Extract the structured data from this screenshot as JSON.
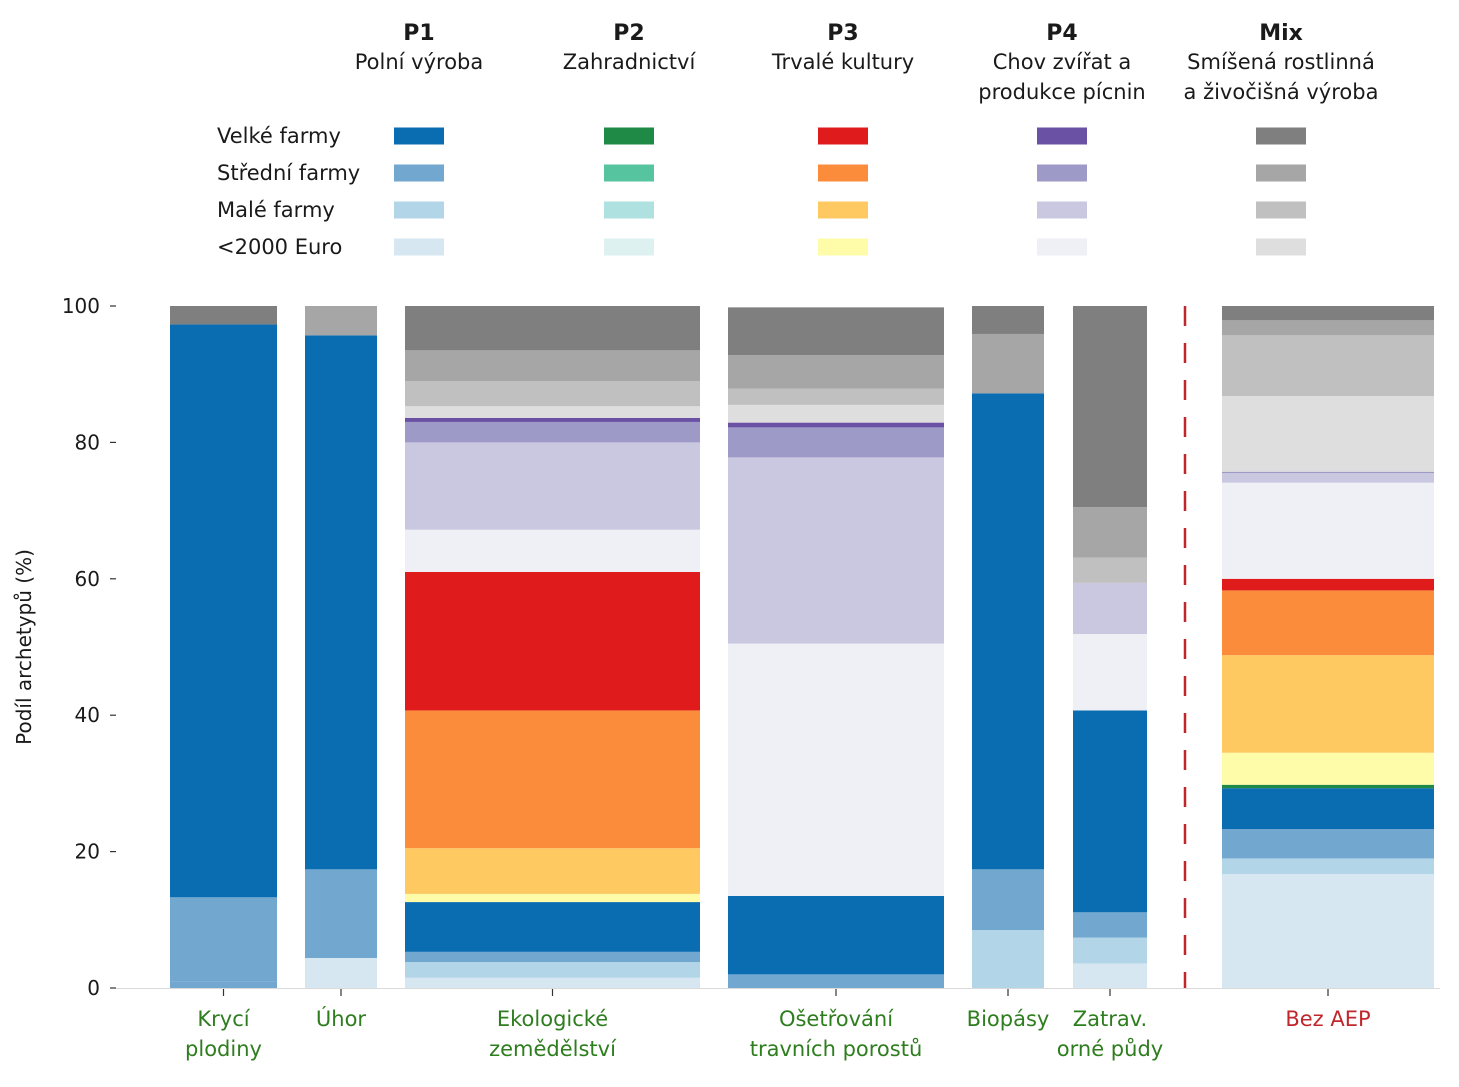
{
  "chart_data": {
    "type": "bar",
    "ylabel": "Podíl archetypů (%)",
    "ylim": [
      0,
      100
    ],
    "yticks": [
      "0",
      "20",
      "40",
      "60",
      "80",
      "100"
    ],
    "legend": {
      "groups": [
        {
          "code": "P1",
          "name": [
            "Polní výroba"
          ],
          "colors": [
            "#0b6db1",
            "#72a7cf",
            "#b3d5e8",
            "#d6e7f2"
          ]
        },
        {
          "code": "P2",
          "name": [
            "Zahradnictví"
          ],
          "colors": [
            "#1e8a45",
            "#56c49e",
            "#aee1df",
            "#ddf2f0"
          ]
        },
        {
          "code": "P3",
          "name": [
            "Trvalé kultury"
          ],
          "colors": [
            "#e01b1b",
            "#fb8c3c",
            "#fdc960",
            "#fefca8"
          ]
        },
        {
          "code": "P4",
          "name": [
            "Chov zvířat a",
            "produkce pícnin"
          ],
          "colors": [
            "#6a51a3",
            "#9e9ac8",
            "#cac7e1",
            "#efeff6"
          ]
        },
        {
          "code": "Mix",
          "name": [
            "Smíšená rostlinná",
            "a živočišná výroba"
          ],
          "colors": [
            "#7f7f7f",
            "#a6a6a6",
            "#c0c0c0",
            "#dedede"
          ]
        }
      ],
      "rows": [
        "Velké farmy",
        "Střední farmy",
        "Malé farmy",
        "<2000 Euro"
      ]
    },
    "bars": [
      {
        "label": [
          "Krycí",
          "plodiny"
        ],
        "label_color": "#2e7d1e",
        "segments": [
          {
            "group": "P1",
            "size": 0,
            "value": 0
          },
          {
            "group": "P1",
            "size": 1,
            "value": 1
          },
          {
            "group": "P1",
            "size": 1,
            "value": 12.3
          },
          {
            "group": "P1",
            "size": 0,
            "value": 84
          },
          {
            "group": "Mix",
            "size": 0,
            "value": 2.7
          }
        ]
      },
      {
        "label": [
          "Úhor"
        ],
        "label_color": "#2e7d1e",
        "segments": [
          {
            "group": "P1",
            "size": 3,
            "value": 4.4
          },
          {
            "group": "P1",
            "size": 1,
            "value": 13
          },
          {
            "group": "P1",
            "size": 0,
            "value": 78.3
          },
          {
            "group": "Mix",
            "size": 1,
            "value": 4.3
          }
        ]
      },
      {
        "label": [
          "Ekologické",
          "zemědělství"
        ],
        "label_color": "#2e7d1e",
        "segments": [
          {
            "group": "P1",
            "size": 3,
            "value": 1.5
          },
          {
            "group": "P1",
            "size": 2,
            "value": 2.3
          },
          {
            "group": "P1",
            "size": 1,
            "value": 1.5
          },
          {
            "group": "P1",
            "size": 0,
            "value": 7.3
          },
          {
            "group": "P3",
            "size": 3,
            "value": 1.2
          },
          {
            "group": "P3",
            "size": 2,
            "value": 6.7
          },
          {
            "group": "P3",
            "size": 1,
            "value": 20.2
          },
          {
            "group": "P3",
            "size": 0,
            "value": 20.3
          },
          {
            "group": "P4",
            "size": 3,
            "value": 6.2
          },
          {
            "group": "P4",
            "size": 2,
            "value": 12.8
          },
          {
            "group": "P4",
            "size": 1,
            "value": 3
          },
          {
            "group": "P4",
            "size": 0,
            "value": 0.6
          },
          {
            "group": "Mix",
            "size": 3,
            "value": 1.7
          },
          {
            "group": "Mix",
            "size": 2,
            "value": 3.7
          },
          {
            "group": "Mix",
            "size": 1,
            "value": 4.5
          },
          {
            "group": "Mix",
            "size": 0,
            "value": 6.5
          }
        ]
      },
      {
        "label": [
          "Ošetřování",
          "travních porostů"
        ],
        "label_color": "#2e7d1e",
        "segments": [
          {
            "group": "P1",
            "size": 1,
            "value": 2
          },
          {
            "group": "P1",
            "size": 0,
            "value": 11.5
          },
          {
            "group": "P4",
            "size": 3,
            "value": 37
          },
          {
            "group": "P4",
            "size": 2,
            "value": 27.3
          },
          {
            "group": "P4",
            "size": 1,
            "value": 4.4
          },
          {
            "group": "P4",
            "size": 0,
            "value": 0.7
          },
          {
            "group": "Mix",
            "size": 3,
            "value": 2.6
          },
          {
            "group": "Mix",
            "size": 2,
            "value": 2.4
          },
          {
            "group": "Mix",
            "size": 1,
            "value": 4.9
          },
          {
            "group": "Mix",
            "size": 0,
            "value": 7
          }
        ]
      },
      {
        "label": [
          "Biopásy"
        ],
        "label_color": "#2e7d1e",
        "segments": [
          {
            "group": "P1",
            "size": 2,
            "value": 8.5
          },
          {
            "group": "P1",
            "size": 1,
            "value": 8.9
          },
          {
            "group": "P1",
            "size": 0,
            "value": 69.8
          },
          {
            "group": "Mix",
            "size": 1,
            "value": 8.7
          },
          {
            "group": "Mix",
            "size": 0,
            "value": 4.1
          }
        ]
      },
      {
        "label": [
          "Zatrav.",
          "orné půdy"
        ],
        "label_color": "#2e7d1e",
        "segments": [
          {
            "group": "P1",
            "size": 3,
            "value": 3.6
          },
          {
            "group": "P1",
            "size": 2,
            "value": 3.8
          },
          {
            "group": "P1",
            "size": 1,
            "value": 3.7
          },
          {
            "group": "P1",
            "size": 0,
            "value": 29.6
          },
          {
            "group": "P4",
            "size": 3,
            "value": 11.2
          },
          {
            "group": "P4",
            "size": 2,
            "value": 7.5
          },
          {
            "group": "Mix",
            "size": 2,
            "value": 3.7
          },
          {
            "group": "Mix",
            "size": 1,
            "value": 7.4
          },
          {
            "group": "Mix",
            "size": 0,
            "value": 29.5
          }
        ]
      },
      {
        "label": [
          "Bez AEP"
        ],
        "label_color": "#c0272d",
        "segments": [
          {
            "group": "P1",
            "size": 3,
            "value": 16.7
          },
          {
            "group": "P1",
            "size": 2,
            "value": 2.3
          },
          {
            "group": "P1",
            "size": 1,
            "value": 4.3
          },
          {
            "group": "P1",
            "size": 0,
            "value": 6
          },
          {
            "group": "P2",
            "size": 0,
            "value": 0.5
          },
          {
            "group": "P3",
            "size": 3,
            "value": 4.7
          },
          {
            "group": "P3",
            "size": 2,
            "value": 14.3
          },
          {
            "group": "P3",
            "size": 1,
            "value": 9.5
          },
          {
            "group": "P3",
            "size": 0,
            "value": 1.7
          },
          {
            "group": "P4",
            "size": 3,
            "value": 14.1
          },
          {
            "group": "P4",
            "size": 2,
            "value": 1.4
          },
          {
            "group": "P4",
            "size": 1,
            "value": 0.2
          },
          {
            "group": "Mix",
            "size": 3,
            "value": 11.1
          },
          {
            "group": "Mix",
            "size": 2,
            "value": 8.9
          },
          {
            "group": "Mix",
            "size": 1,
            "value": 2.2
          },
          {
            "group": "Mix",
            "size": 0,
            "value": 2.1
          }
        ]
      }
    ]
  }
}
